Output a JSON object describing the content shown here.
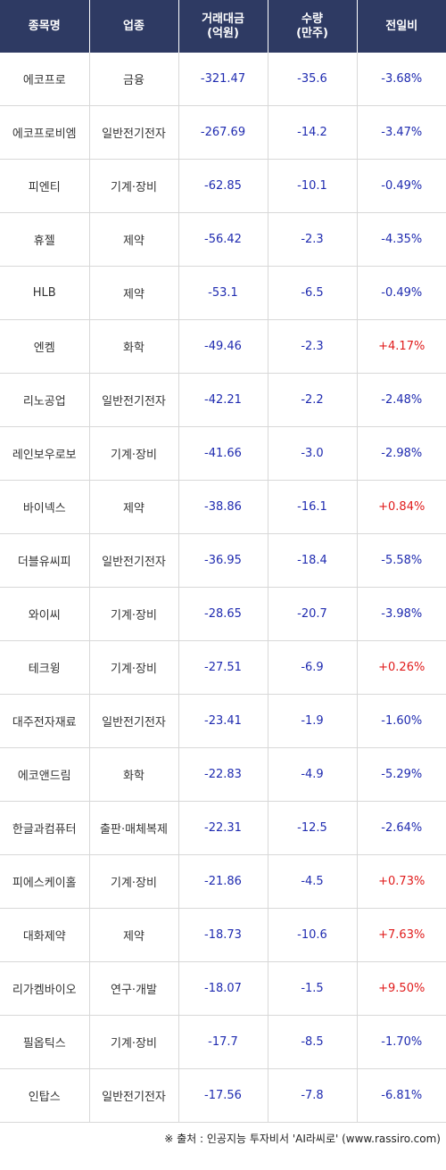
{
  "header": {
    "col1": "종목명",
    "col2": "업종",
    "col3_line1": "거래대금",
    "col3_line2": "(억원)",
    "col4_line1": "수량",
    "col4_line2": "(만주)",
    "col5": "전일비"
  },
  "colors": {
    "header_bg": "#2e3a63",
    "negative": "#1f2bb0",
    "positive": "#e01b1b"
  },
  "rows": [
    {
      "name": "에코프로",
      "sector": "금융",
      "amount": "-321.47",
      "qty": "-35.6",
      "change": "-3.68%"
    },
    {
      "name": "에코프로비엠",
      "sector": "일반전기전자",
      "amount": "-267.69",
      "qty": "-14.2",
      "change": "-3.47%"
    },
    {
      "name": "피엔티",
      "sector": "기계·장비",
      "amount": "-62.85",
      "qty": "-10.1",
      "change": "-0.49%"
    },
    {
      "name": "휴젤",
      "sector": "제약",
      "amount": "-56.42",
      "qty": "-2.3",
      "change": "-4.35%"
    },
    {
      "name": "HLB",
      "sector": "제약",
      "amount": "-53.1",
      "qty": "-6.5",
      "change": "-0.49%"
    },
    {
      "name": "엔켐",
      "sector": "화학",
      "amount": "-49.46",
      "qty": "-2.3",
      "change": "+4.17%"
    },
    {
      "name": "리노공업",
      "sector": "일반전기전자",
      "amount": "-42.21",
      "qty": "-2.2",
      "change": "-2.48%"
    },
    {
      "name": "레인보우로보",
      "sector": "기계·장비",
      "amount": "-41.66",
      "qty": "-3.0",
      "change": "-2.98%"
    },
    {
      "name": "바이넥스",
      "sector": "제약",
      "amount": "-38.86",
      "qty": "-16.1",
      "change": "+0.84%"
    },
    {
      "name": "더블유씨피",
      "sector": "일반전기전자",
      "amount": "-36.95",
      "qty": "-18.4",
      "change": "-5.58%"
    },
    {
      "name": "와이씨",
      "sector": "기계·장비",
      "amount": "-28.65",
      "qty": "-20.7",
      "change": "-3.98%"
    },
    {
      "name": "테크윙",
      "sector": "기계·장비",
      "amount": "-27.51",
      "qty": "-6.9",
      "change": "+0.26%"
    },
    {
      "name": "대주전자재료",
      "sector": "일반전기전자",
      "amount": "-23.41",
      "qty": "-1.9",
      "change": "-1.60%"
    },
    {
      "name": "에코앤드림",
      "sector": "화학",
      "amount": "-22.83",
      "qty": "-4.9",
      "change": "-5.29%"
    },
    {
      "name": "한글과컴퓨터",
      "sector": "출판·매체복제",
      "amount": "-22.31",
      "qty": "-12.5",
      "change": "-2.64%"
    },
    {
      "name": "피에스케이홀",
      "sector": "기계·장비",
      "amount": "-21.86",
      "qty": "-4.5",
      "change": "+0.73%"
    },
    {
      "name": "대화제약",
      "sector": "제약",
      "amount": "-18.73",
      "qty": "-10.6",
      "change": "+7.63%"
    },
    {
      "name": "리가켐바이오",
      "sector": "연구·개발",
      "amount": "-18.07",
      "qty": "-1.5",
      "change": "+9.50%"
    },
    {
      "name": "필옵틱스",
      "sector": "기계·장비",
      "amount": "-17.7",
      "qty": "-8.5",
      "change": "-1.70%"
    },
    {
      "name": "인탑스",
      "sector": "일반전기전자",
      "amount": "-17.56",
      "qty": "-7.8",
      "change": "-6.81%"
    }
  ],
  "footer": "※ 출처 : 인공지능 투자비서 'AI라씨로' (www.rassiro.com)"
}
